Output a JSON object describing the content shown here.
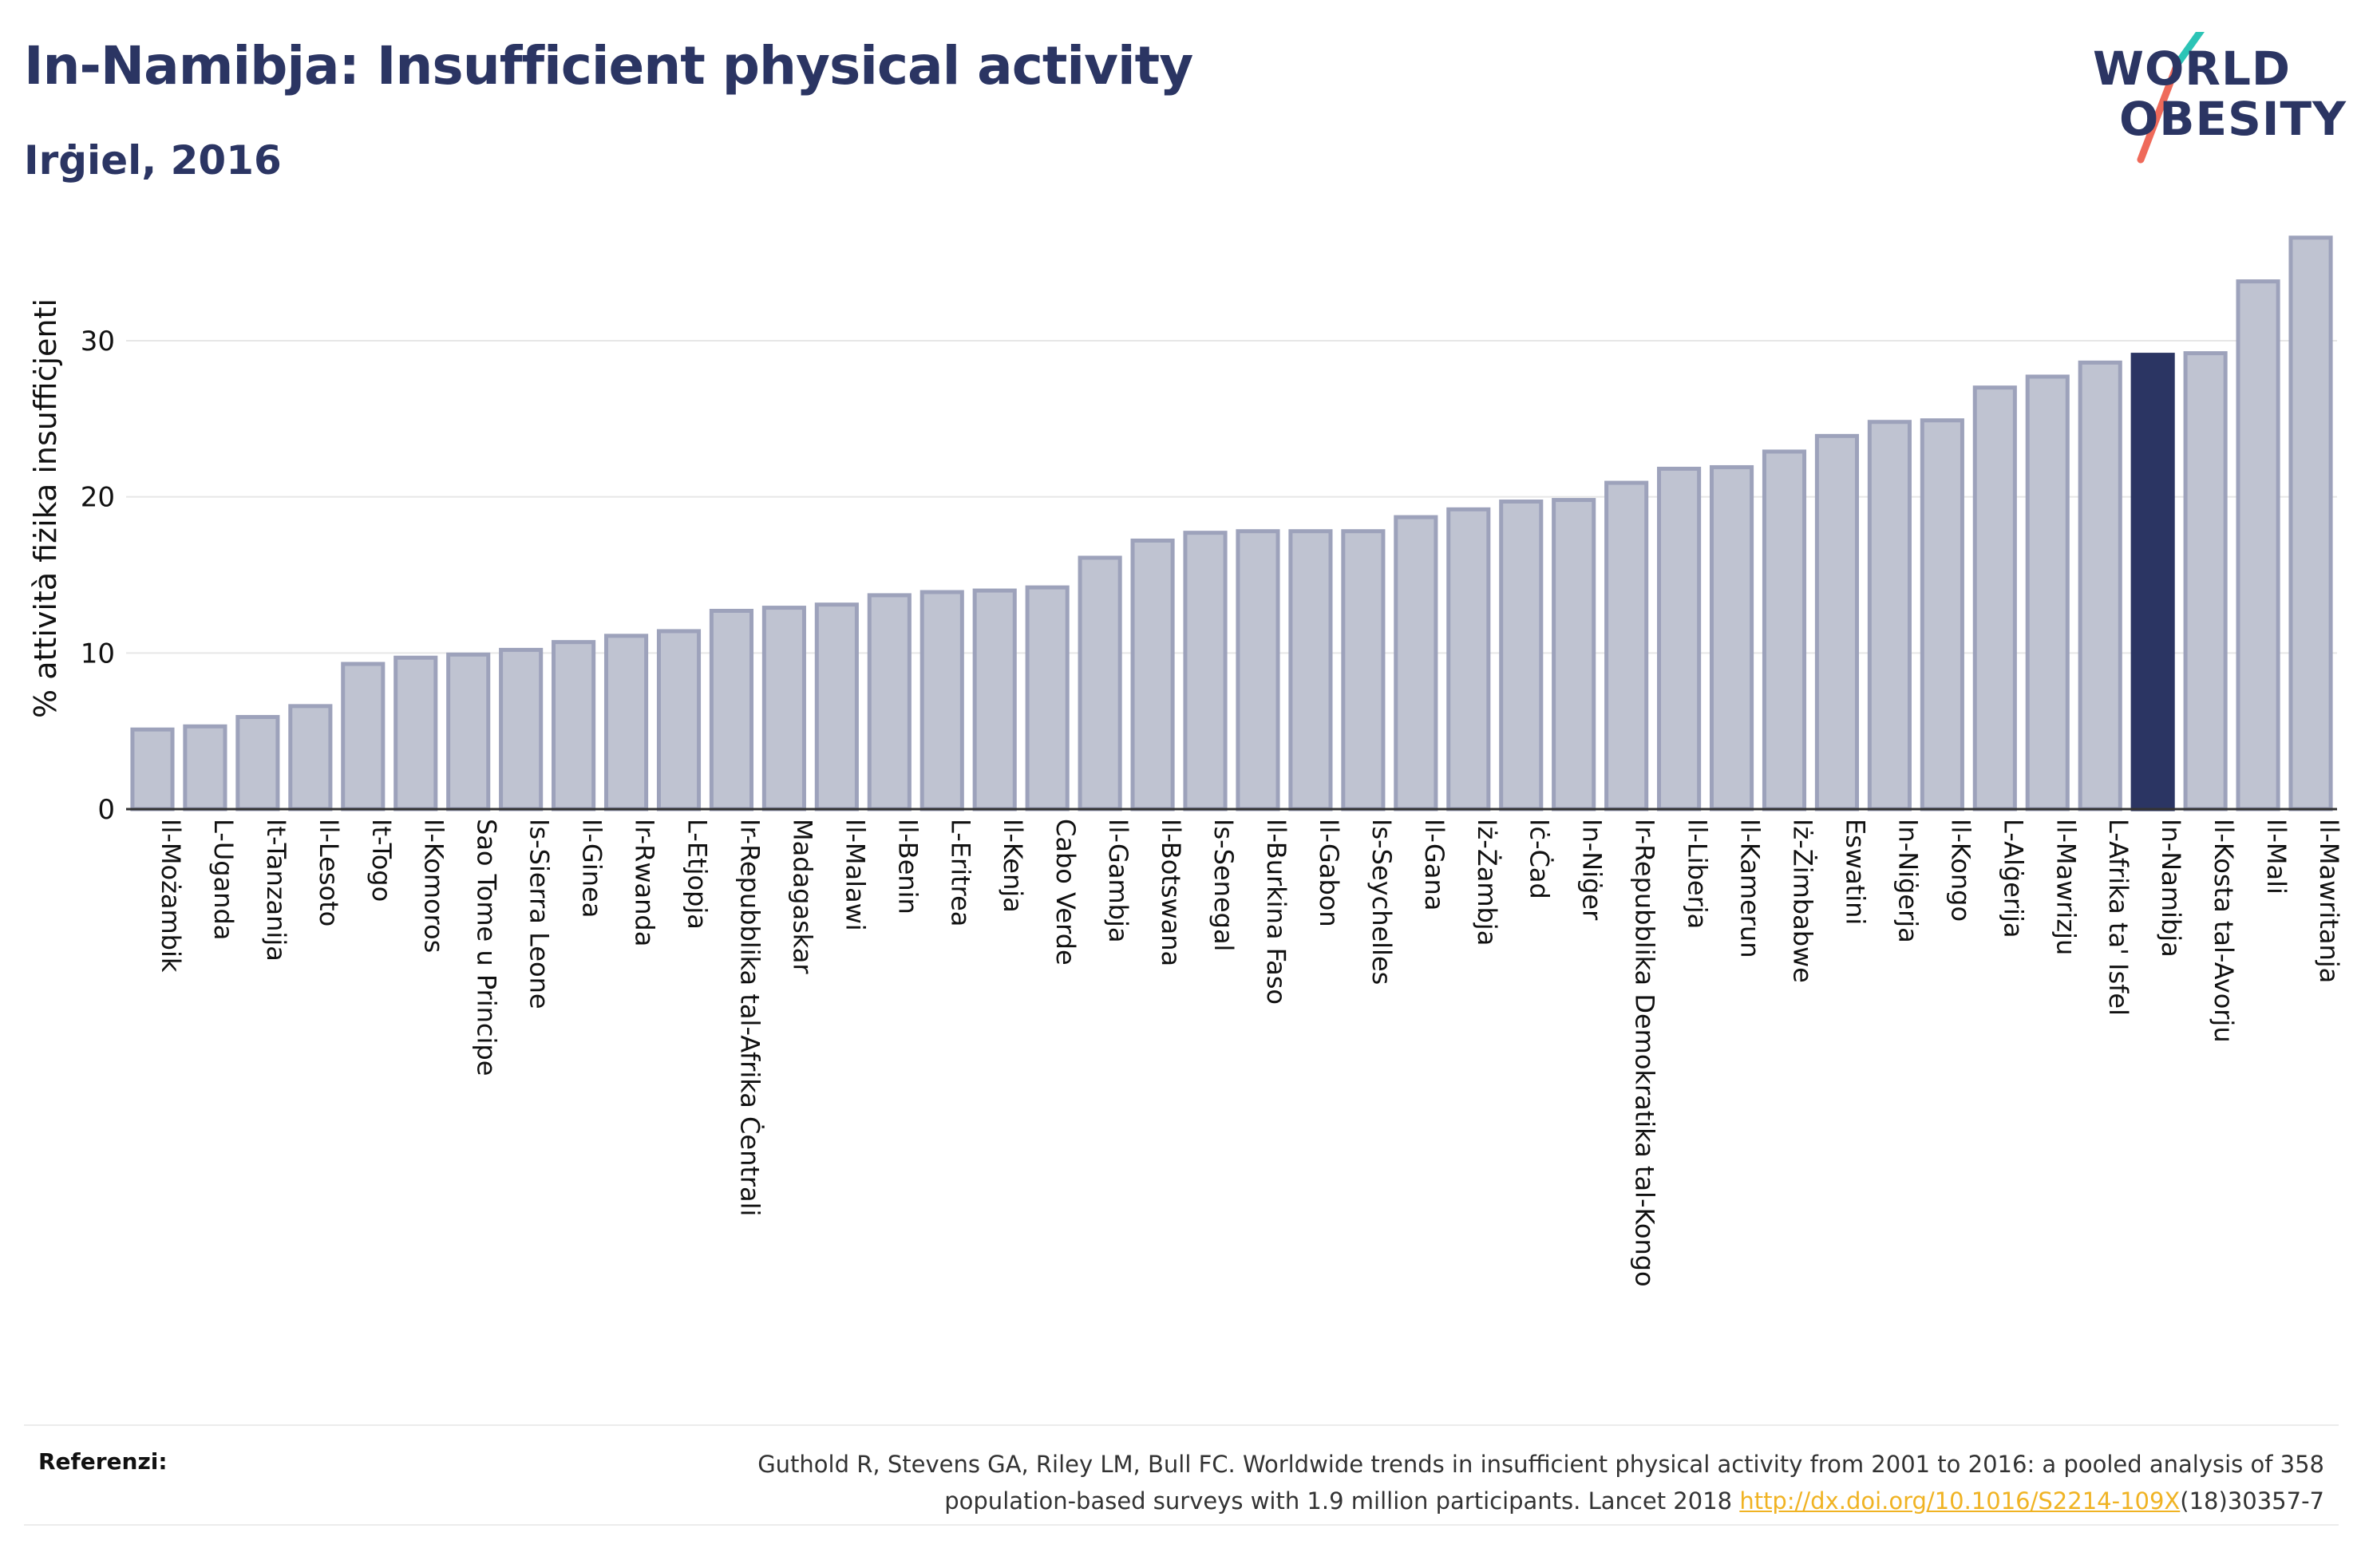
{
  "header": {
    "title": "In-Namibja: Insufficient physical activity",
    "subtitle": "Irġiel, 2016"
  },
  "logo": {
    "line1": "WORLD",
    "line2": "OBESITY",
    "accent_colors": [
      "#2cc4b6",
      "#ef6a5a"
    ]
  },
  "colors": {
    "bar": "#bfc3d1",
    "bar_border": "#9da2bb",
    "highlight": "#2b3563",
    "text": "#2b3563",
    "link": "#f0b323"
  },
  "chart_data": {
    "type": "bar",
    "title": "In-Namibja: Insufficient physical activity",
    "subtitle": "Irġiel, 2016",
    "xlabel": "",
    "ylabel": "% attività fiżika insuffiċjenti",
    "ylim": [
      0,
      37
    ],
    "yticks": [
      0,
      10,
      20,
      30
    ],
    "grid": true,
    "highlight_category": "In-Namibja",
    "categories": [
      "Il-Możambik",
      "L-Uganda",
      "It-Tanzanija",
      "Il-Lesoto",
      "It-Togo",
      "Il-Komoros",
      "Sao Tome u Principe",
      "Is-Sierra Leone",
      "Il-Ginea",
      "Ir-Rwanda",
      "L-Etjopja",
      "Ir-Repubblika tal-Afrika Ċentrali",
      "Madagaskar",
      "Il-Malawi",
      "Il-Benin",
      "L-Eritrea",
      "Il-Kenja",
      "Cabo Verde",
      "Il-Gambja",
      "Il-Botswana",
      "Is-Senegal",
      "Il-Burkina Faso",
      "Il-Gabon",
      "Is-Seychelles",
      "Il-Gana",
      "Iż-Żambja",
      "Iċ-Ċad",
      "In-Niġer",
      "Ir-Repubblika Demokratika tal-Kongo",
      "Il-Liberja",
      "Il-Kamerun",
      "Iż-Żimbabwe",
      "Eswatini",
      "In-Niġerja",
      "Il-Kongo",
      "L-Alġerija",
      "Il-Mawrizju",
      "L-Afrika ta' Isfel",
      "In-Namibja",
      "Il-Kosta tal-Avorju",
      "Il-Mali",
      "Il-Mawritanja"
    ],
    "values": [
      5.1,
      5.3,
      5.9,
      6.6,
      9.3,
      9.7,
      9.9,
      10.2,
      10.7,
      11.1,
      11.4,
      12.7,
      12.9,
      13.1,
      13.7,
      13.9,
      14.0,
      14.2,
      16.1,
      17.2,
      17.7,
      17.8,
      17.8,
      17.8,
      18.7,
      19.2,
      19.7,
      19.8,
      20.9,
      21.8,
      21.9,
      22.9,
      23.9,
      24.8,
      24.9,
      27.0,
      27.7,
      28.6,
      29.1,
      29.2,
      33.8,
      36.6
    ]
  },
  "footer": {
    "ref_label": "Referenzi:",
    "ref_text_1": "Guthold R, Stevens GA, Riley LM, Bull FC. Worldwide trends in insufficient physical activity from 2001 to 2016: a pooled analysis of 358",
    "ref_text_2a": "population-based surveys with 1.9 million participants. Lancet 2018 ",
    "ref_link": "http://dx.doi.org/10.1016/S2214-109X",
    "ref_text_2b": "(18)30357-7"
  }
}
